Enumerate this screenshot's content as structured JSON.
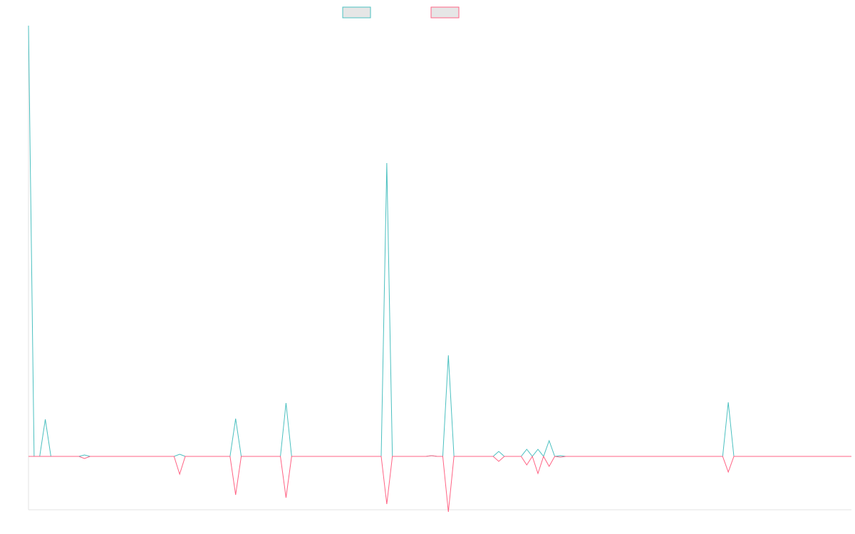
{
  "chart_data": {
    "type": "line",
    "title": "",
    "xlabel": "",
    "ylabel": "",
    "x": [
      0,
      1,
      2,
      3,
      4,
      5,
      6,
      7,
      8,
      9,
      10,
      11,
      12,
      13,
      14,
      15,
      16,
      17,
      18,
      19,
      20,
      21,
      22,
      23,
      24,
      25,
      26,
      27,
      28,
      29,
      30,
      31,
      32,
      33,
      34,
      35,
      36,
      37,
      38,
      39,
      40,
      41,
      42,
      43,
      44,
      45,
      46,
      47,
      48,
      49,
      50,
      51,
      52,
      53,
      54,
      55,
      56,
      57,
      58,
      59,
      60,
      61,
      62,
      63,
      64,
      65,
      66,
      67,
      68,
      69,
      70,
      71,
      72,
      73,
      74,
      75,
      76,
      77,
      78,
      79,
      80,
      81,
      82,
      83,
      84,
      85,
      86,
      87,
      88,
      89,
      90,
      91,
      92,
      93,
      94,
      95,
      96,
      97,
      98,
      99,
      100,
      101,
      102,
      103,
      104,
      105,
      106,
      107,
      108,
      109,
      110,
      111,
      112,
      113,
      114,
      115,
      116,
      117,
      118,
      119,
      120,
      121,
      122,
      123,
      124,
      125,
      126,
      127,
      128,
      129,
      130,
      131,
      132,
      133,
      134,
      135,
      136,
      137,
      138,
      139,
      140,
      141,
      142,
      143,
      144,
      145,
      146,
      147
    ],
    "series": [
      {
        "name": "",
        "color": "#4bc0c0",
        "values": [
          605,
          0,
          0,
          52,
          0,
          0,
          0,
          0,
          0,
          0,
          2,
          0,
          0,
          0,
          0,
          0,
          0,
          0,
          0,
          0,
          0,
          0,
          0,
          0,
          0,
          0,
          0,
          3,
          0,
          0,
          0,
          0,
          0,
          0,
          0,
          0,
          0,
          53,
          0,
          0,
          0,
          0,
          0,
          0,
          0,
          0,
          75,
          0,
          0,
          0,
          0,
          0,
          0,
          0,
          0,
          0,
          0,
          0,
          0,
          0,
          0,
          0,
          0,
          0,
          412,
          0,
          0,
          0,
          0,
          0,
          0,
          0,
          1,
          0,
          0,
          142,
          0,
          0,
          0,
          0,
          0,
          0,
          0,
          0,
          7,
          0,
          0,
          0,
          0,
          10,
          0,
          10,
          0,
          22,
          0,
          1,
          0,
          0,
          0,
          0,
          0,
          0,
          0,
          0,
          0,
          0,
          0,
          0,
          0,
          0,
          0,
          0,
          0,
          0,
          0,
          0,
          0,
          0,
          0,
          0,
          0,
          0,
          0,
          0,
          0,
          76,
          0,
          0,
          0,
          0,
          0,
          0,
          0,
          0,
          0,
          0,
          0,
          0,
          0,
          0,
          0,
          0,
          0,
          0,
          0,
          0,
          0,
          0
        ]
      },
      {
        "name": "",
        "color": "#ff6384",
        "values": [
          0,
          0,
          0,
          0,
          0,
          0,
          0,
          0,
          0,
          0,
          -3,
          0,
          0,
          0,
          0,
          0,
          0,
          0,
          0,
          0,
          0,
          0,
          0,
          0,
          0,
          0,
          0,
          -25,
          0,
          0,
          0,
          0,
          0,
          0,
          0,
          0,
          0,
          -54,
          0,
          0,
          0,
          0,
          0,
          0,
          0,
          0,
          -58,
          0,
          0,
          0,
          0,
          0,
          0,
          0,
          0,
          0,
          0,
          0,
          0,
          0,
          0,
          0,
          0,
          0,
          -67,
          0,
          0,
          0,
          0,
          0,
          0,
          0,
          1,
          0,
          0,
          -78,
          0,
          0,
          0,
          0,
          0,
          0,
          0,
          0,
          -7,
          0,
          0,
          0,
          0,
          -12,
          0,
          -24,
          0,
          -14,
          0,
          -1,
          0,
          0,
          0,
          0,
          0,
          0,
          0,
          0,
          0,
          0,
          0,
          0,
          0,
          0,
          0,
          0,
          0,
          0,
          0,
          0,
          0,
          0,
          0,
          0,
          0,
          0,
          0,
          0,
          0,
          -22,
          0,
          0,
          0,
          0,
          0,
          0,
          0,
          0,
          0,
          0,
          0,
          0,
          0,
          0,
          0,
          0,
          0,
          0,
          0,
          0,
          0,
          0
        ]
      }
    ],
    "xlim": [
      0,
      147
    ],
    "ylim": [
      -75,
      605
    ],
    "grid": false,
    "legend_position": "top"
  }
}
